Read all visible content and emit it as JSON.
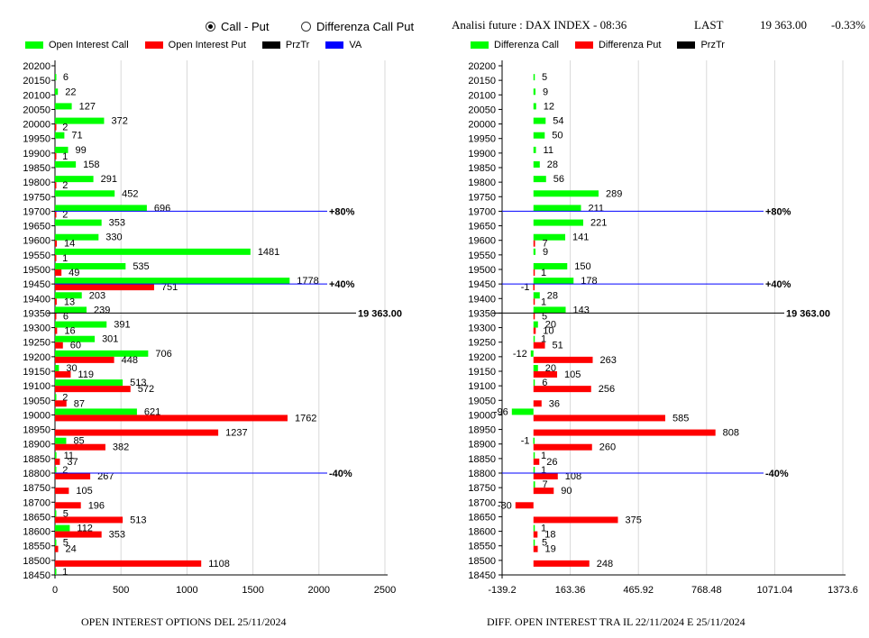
{
  "header": {
    "radio_call_put": "Call - Put",
    "radio_diff": "Differenza Call Put",
    "info_label": "Analisi future : DAX INDEX - 08:36",
    "last_label": "LAST",
    "last_value": "19 363.00",
    "change": "-0.33%"
  },
  "legend_left": [
    {
      "label": "Open Interest Call",
      "color": "#00ff00"
    },
    {
      "label": "Open Interest Put",
      "color": "#ff0000"
    },
    {
      "label": "PrzTr",
      "color": "#000000"
    },
    {
      "label": "VA",
      "color": "#0000ff"
    }
  ],
  "legend_right": [
    {
      "label": "Differenza Call",
      "color": "#00ff00"
    },
    {
      "label": "Differenza Put",
      "color": "#ff0000"
    },
    {
      "label": "PrzTr",
      "color": "#000000"
    }
  ],
  "captions": {
    "left": "OPEN INTEREST OPTIONS DEL 25/11/2024",
    "right": "DIFF. OPEN INTEREST TRA IL 22/11/2024 E 25/11/2024"
  },
  "chart_data": [
    {
      "type": "bar",
      "orientation": "horizontal",
      "strikes": [
        20200,
        20150,
        20100,
        20050,
        20000,
        19950,
        19900,
        19850,
        19800,
        19750,
        19700,
        19650,
        19600,
        19550,
        19500,
        19450,
        19400,
        19350,
        19300,
        19250,
        19200,
        19150,
        19100,
        19050,
        19000,
        18950,
        18900,
        18850,
        18800,
        18750,
        18700,
        18650,
        18600,
        18550,
        18500,
        18450
      ],
      "series": [
        {
          "name": "Open Interest Call",
          "color": "#00ff00",
          "values": [
            null,
            6,
            22,
            127,
            372,
            71,
            99,
            158,
            291,
            452,
            696,
            353,
            330,
            1481,
            535,
            1778,
            203,
            239,
            391,
            301,
            706,
            30,
            513,
            2,
            621,
            null,
            85,
            11,
            2,
            null,
            null,
            5,
            112,
            5,
            null,
            1
          ]
        },
        {
          "name": "Open Interest Put",
          "color": "#ff0000",
          "values": [
            null,
            null,
            null,
            null,
            2,
            null,
            1,
            null,
            2,
            null,
            2,
            null,
            14,
            1,
            49,
            751,
            13,
            6,
            16,
            60,
            448,
            119,
            572,
            87,
            1762,
            1237,
            382,
            37,
            267,
            105,
            196,
            513,
            353,
            24,
            1108,
            null
          ]
        }
      ],
      "xticks": [
        "0",
        "500",
        "1000",
        "1500",
        "2000",
        "2500"
      ],
      "xlim": [
        0,
        2500
      ],
      "ref_lines": [
        {
          "strike": 19700,
          "label": "+80%",
          "color": "#0000ff"
        },
        {
          "strike": 19450,
          "label": "+40%",
          "color": "#0000ff"
        },
        {
          "strike": 19350,
          "label": "19 363.00",
          "color": "#000000"
        },
        {
          "strike": 18800,
          "label": "-40%",
          "color": "#0000ff"
        }
      ],
      "title": "OPEN INTEREST OPTIONS DEL 25/11/2024"
    },
    {
      "type": "bar",
      "orientation": "horizontal",
      "strikes": [
        20200,
        20150,
        20100,
        20050,
        20000,
        19950,
        19900,
        19850,
        19800,
        19750,
        19700,
        19650,
        19600,
        19550,
        19500,
        19450,
        19400,
        19350,
        19300,
        19250,
        19200,
        19150,
        19100,
        19050,
        19000,
        18950,
        18900,
        18850,
        18800,
        18750,
        18700,
        18650,
        18600,
        18550,
        18500,
        18450
      ],
      "series": [
        {
          "name": "Differenza Call",
          "color": "#00ff00",
          "values": [
            null,
            5,
            9,
            12,
            54,
            50,
            11,
            28,
            56,
            289,
            211,
            221,
            141,
            9,
            150,
            178,
            28,
            143,
            20,
            1,
            -12,
            20,
            6,
            null,
            -96,
            null,
            -1,
            1,
            1,
            7,
            null,
            null,
            1,
            5,
            null,
            null
          ]
        },
        {
          "name": "Differenza Put",
          "color": "#ff0000",
          "values": [
            null,
            null,
            null,
            null,
            null,
            null,
            null,
            null,
            null,
            null,
            null,
            null,
            7,
            null,
            1,
            -1,
            1,
            5,
            10,
            51,
            263,
            105,
            256,
            36,
            585,
            808,
            260,
            26,
            108,
            90,
            -80,
            375,
            18,
            19,
            248,
            null
          ]
        }
      ],
      "xticks": [
        "-139.2",
        "163.36",
        "465.92",
        "768.48",
        "1071.04",
        "1373.6"
      ],
      "xlim": [
        -139.2,
        1373.6
      ],
      "ref_lines": [
        {
          "strike": 19700,
          "label": "+80%",
          "color": "#0000ff"
        },
        {
          "strike": 19450,
          "label": "+40%",
          "color": "#0000ff"
        },
        {
          "strike": 19350,
          "label": "19 363.00",
          "color": "#000000"
        },
        {
          "strike": 18800,
          "label": "-40%",
          "color": "#0000ff"
        }
      ],
      "title": "DIFF. OPEN INTEREST TRA IL 22/11/2024 E 25/11/2024"
    }
  ]
}
